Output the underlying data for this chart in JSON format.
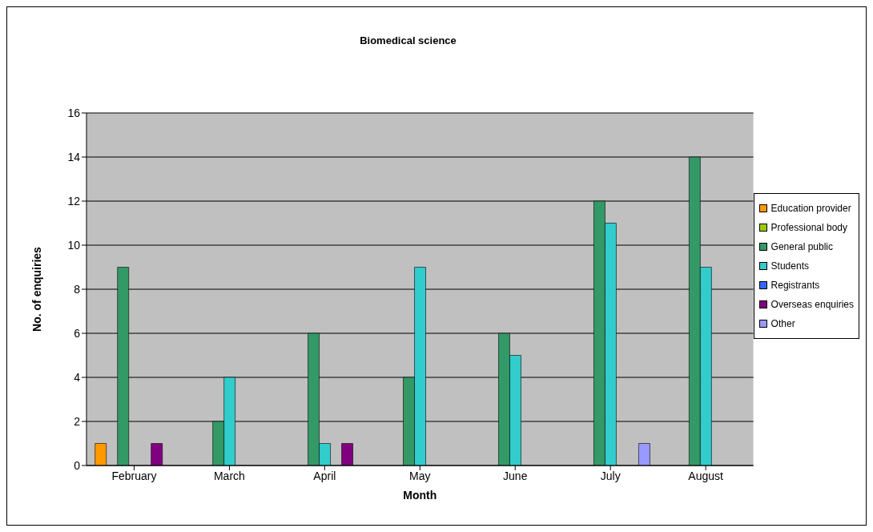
{
  "chart_data": {
    "type": "bar",
    "title": "Biomedical science",
    "xlabel": "Month",
    "ylabel": "No. of enquiries",
    "categories": [
      "February",
      "March",
      "April",
      "May",
      "June",
      "July",
      "August"
    ],
    "series": [
      {
        "name": "Education provider",
        "color": "#ff9900",
        "values": [
          1,
          0,
          0,
          0,
          0,
          0,
          0
        ]
      },
      {
        "name": "Professional body",
        "color": "#99cc00",
        "values": [
          0,
          0,
          0,
          0,
          0,
          0,
          0
        ]
      },
      {
        "name": "General public",
        "color": "#339966",
        "values": [
          9,
          2,
          6,
          4,
          6,
          12,
          14
        ]
      },
      {
        "name": "Students",
        "color": "#33cccc",
        "values": [
          0,
          4,
          1,
          9,
          5,
          11,
          9
        ]
      },
      {
        "name": "Registrants",
        "color": "#3366ff",
        "values": [
          0,
          0,
          0,
          0,
          0,
          0,
          0
        ]
      },
      {
        "name": "Overseas enquiries",
        "color": "#800080",
        "values": [
          1,
          0,
          1,
          0,
          0,
          0,
          0
        ]
      },
      {
        "name": "Other",
        "color": "#9999ff",
        "values": [
          0,
          0,
          0,
          0,
          0,
          1,
          0
        ]
      }
    ],
    "ylim": [
      0,
      16
    ],
    "yticks": [
      0,
      2,
      4,
      6,
      8,
      10,
      12,
      14,
      16
    ],
    "grid": "y",
    "legend": "right"
  }
}
